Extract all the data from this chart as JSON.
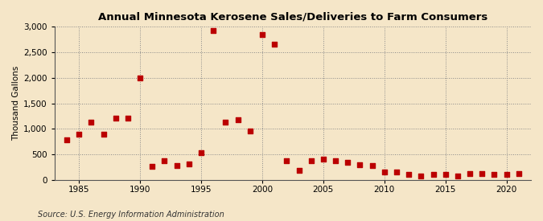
{
  "title": "Annual Minnesota Kerosene Sales/Deliveries to Farm Consumers",
  "ylabel": "Thousand Gallons",
  "source": "Source: U.S. Energy Information Administration",
  "background_color": "#f5e6c8",
  "years": [
    1984,
    1985,
    1986,
    1987,
    1988,
    1989,
    1990,
    1991,
    1992,
    1993,
    1994,
    1995,
    1996,
    1997,
    1998,
    1999,
    2000,
    2001,
    2002,
    2003,
    2004,
    2005,
    2006,
    2007,
    2008,
    2009,
    2010,
    2011,
    2012,
    2013,
    2014,
    2015,
    2016,
    2017,
    2018,
    2019,
    2020,
    2021
  ],
  "values": [
    790,
    900,
    1130,
    900,
    1210,
    1210,
    2000,
    260,
    380,
    280,
    310,
    530,
    2920,
    1130,
    1180,
    950,
    2840,
    2660,
    370,
    180,
    380,
    400,
    380,
    350,
    300,
    280,
    160,
    150,
    110,
    70,
    100,
    100,
    80,
    120,
    120,
    110,
    100,
    130
  ],
  "marker_color": "#bb0000",
  "marker_size": 4,
  "ylim": [
    0,
    3000
  ],
  "yticks": [
    0,
    500,
    1000,
    1500,
    2000,
    2500,
    3000
  ],
  "xlim": [
    1983,
    2022
  ],
  "xticks": [
    1985,
    1990,
    1995,
    2000,
    2005,
    2010,
    2015,
    2020
  ]
}
